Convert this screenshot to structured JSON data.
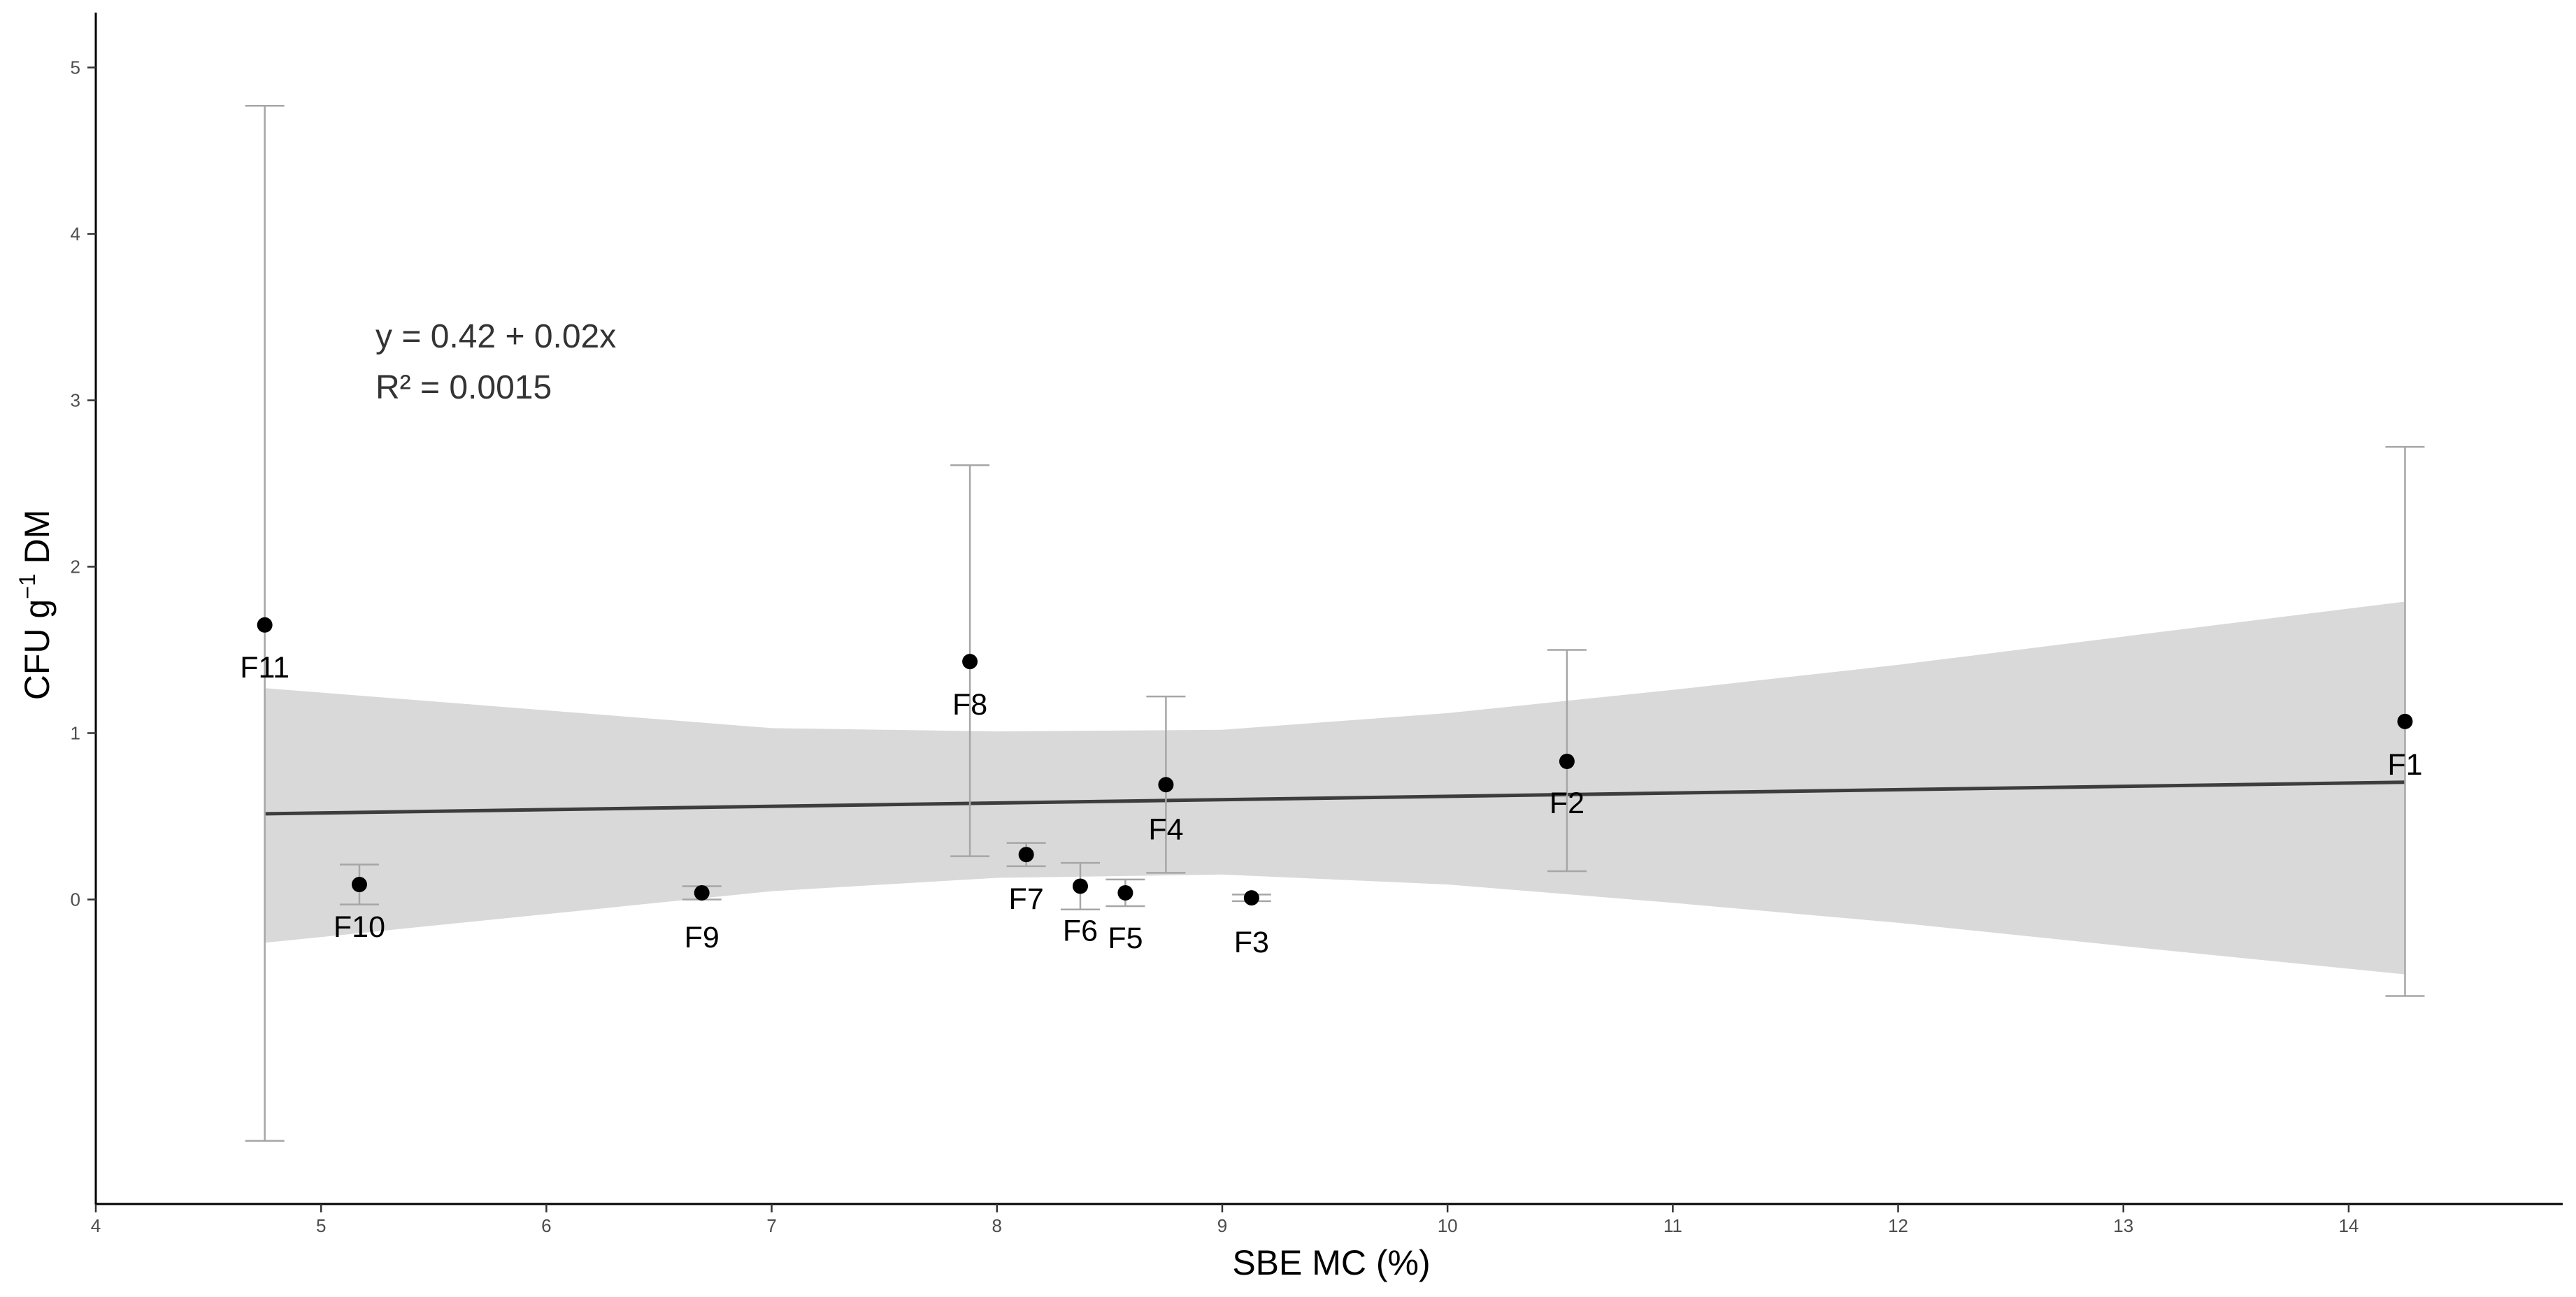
{
  "chart_data": {
    "type": "scatter",
    "title": "",
    "xlabel": "SBE MC (%)",
    "ylabel": {
      "base": "CFU g",
      "superscript": "−1",
      "suffix": " DM"
    },
    "xlim": [
      4,
      14.95
    ],
    "ylim": [
      -1.83,
      5.33
    ],
    "x_ticks": [
      4,
      5,
      6,
      7,
      8,
      9,
      10,
      11,
      12,
      13,
      14
    ],
    "y_ticks": [
      0,
      1,
      2,
      3,
      4,
      5
    ],
    "grid": false,
    "points": [
      {
        "label": "F11",
        "x": 4.75,
        "y": 1.65,
        "err_low": -1.45,
        "err_high": 4.77
      },
      {
        "label": "F10",
        "x": 5.17,
        "y": 0.09,
        "err_low": -0.03,
        "err_high": 0.21
      },
      {
        "label": "F9",
        "x": 6.69,
        "y": 0.04,
        "err_low": 0.0,
        "err_high": 0.08
      },
      {
        "label": "F8",
        "x": 7.88,
        "y": 1.43,
        "err_low": 0.26,
        "err_high": 2.61
      },
      {
        "label": "F7",
        "x": 8.13,
        "y": 0.27,
        "err_low": 0.2,
        "err_high": 0.34
      },
      {
        "label": "F6",
        "x": 8.37,
        "y": 0.08,
        "err_low": -0.06,
        "err_high": 0.22
      },
      {
        "label": "F5",
        "x": 8.57,
        "y": 0.04,
        "err_low": -0.04,
        "err_high": 0.12
      },
      {
        "label": "F4",
        "x": 8.75,
        "y": 0.69,
        "err_low": 0.16,
        "err_high": 1.22
      },
      {
        "label": "F3",
        "x": 9.13,
        "y": 0.01,
        "err_low": -0.01,
        "err_high": 0.03
      },
      {
        "label": "F2",
        "x": 10.53,
        "y": 0.83,
        "err_low": 0.17,
        "err_high": 1.5
      },
      {
        "label": "F1",
        "x": 14.25,
        "y": 1.07,
        "err_low": -0.58,
        "err_high": 2.72
      }
    ],
    "regression": {
      "equation": "y = 0.42 + 0.02x",
      "r_squared": "R² = 0.0015",
      "intercept": 0.42,
      "slope": 0.02,
      "x_range": [
        4.75,
        14.25
      ],
      "ci_x": [
        4.75,
        7.0,
        8.0,
        9.0,
        10.0,
        11.0,
        12.0,
        13.0,
        14.25
      ],
      "ci_low": [
        -0.26,
        0.05,
        0.13,
        0.15,
        0.09,
        -0.02,
        -0.14,
        -0.28,
        -0.45
      ],
      "ci_high": [
        1.27,
        1.03,
        1.01,
        1.02,
        1.12,
        1.26,
        1.41,
        1.58,
        1.79
      ]
    },
    "colors": {
      "ci_band": "#d9d9d9",
      "fit_line": "#3d3d3d",
      "points": "#000000",
      "errorbar": "#a6a6a6"
    }
  }
}
